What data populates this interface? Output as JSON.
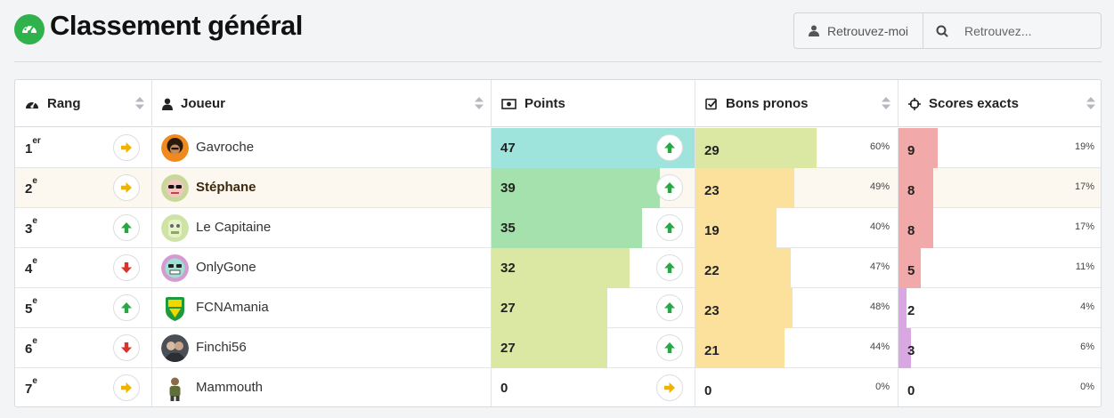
{
  "page": {
    "title": "Classement général",
    "find_me_label": "Retrouvez-moi",
    "search_placeholder": "Retrouvez..."
  },
  "colors": {
    "brand_green": "#2fb14c",
    "arrow_up": "#28a745",
    "arrow_down": "#d9332b",
    "arrow_same": "#f0b400"
  },
  "columns": {
    "rank": "Rang",
    "player": "Joueur",
    "points": "Points",
    "good": "Bons pronos",
    "exact": "Scores exacts"
  },
  "rows": [
    {
      "rank": "1",
      "suffix": "er",
      "trend": "same",
      "player": "Gavroche",
      "avatar": "afro-icon",
      "points": "47",
      "points_trend": "up",
      "points_fill": 1.0,
      "points_color": "#9ee3dc",
      "good": "29",
      "good_pct": "60%",
      "good_fill": 0.6,
      "good_color": "#dbe8a4",
      "exact": "9",
      "exact_pct": "19%",
      "exact_fill": 0.19,
      "exact_color": "#f2a9a9"
    },
    {
      "rank": "2",
      "suffix": "e",
      "trend": "same",
      "player": "Stéphane",
      "avatar": "sunglasses-face-icon",
      "points": "39",
      "points_trend": "up",
      "points_fill": 0.83,
      "points_color": "#a5e1ad",
      "good": "23",
      "good_pct": "49%",
      "good_fill": 0.49,
      "good_color": "#fbe19b",
      "exact": "8",
      "exact_pct": "17%",
      "exact_fill": 0.17,
      "exact_color": "#f2a9a9",
      "highlight": true
    },
    {
      "rank": "3",
      "suffix": "e",
      "trend": "up",
      "player": "Le Capitaine",
      "avatar": "captain-face-icon",
      "points": "35",
      "points_trend": "up",
      "points_fill": 0.74,
      "points_color": "#a5e1ad",
      "good": "19",
      "good_pct": "40%",
      "good_fill": 0.4,
      "good_color": "#fbe19b",
      "exact": "8",
      "exact_pct": "17%",
      "exact_fill": 0.17,
      "exact_color": "#f2a9a9"
    },
    {
      "rank": "4",
      "suffix": "e",
      "trend": "down",
      "player": "OnlyGone",
      "avatar": "skull-face-icon",
      "points": "32",
      "points_trend": "up",
      "points_fill": 0.68,
      "points_color": "#dbe8a4",
      "good": "22",
      "good_pct": "47%",
      "good_fill": 0.47,
      "good_color": "#fbe19b",
      "exact": "5",
      "exact_pct": "11%",
      "exact_fill": 0.11,
      "exact_color": "#f2a9a9"
    },
    {
      "rank": "5",
      "suffix": "e",
      "trend": "up",
      "player": "FCNAmania",
      "avatar": "fcn-crest-icon",
      "points": "27",
      "points_trend": "up",
      "points_fill": 0.57,
      "points_color": "#dbe8a4",
      "good": "23",
      "good_pct": "48%",
      "good_fill": 0.48,
      "good_color": "#fbe19b",
      "exact": "2",
      "exact_pct": "4%",
      "exact_fill": 0.04,
      "exact_color": "#d9a8e3"
    },
    {
      "rank": "6",
      "suffix": "e",
      "trend": "down",
      "player": "Finchi56",
      "avatar": "couple-photo-icon",
      "points": "27",
      "points_trend": "up",
      "points_fill": 0.57,
      "points_color": "#dbe8a4",
      "good": "21",
      "good_pct": "44%",
      "good_fill": 0.44,
      "good_color": "#fbe19b",
      "exact": "3",
      "exact_pct": "6%",
      "exact_fill": 0.06,
      "exact_color": "#d9a8e3"
    },
    {
      "rank": "7",
      "suffix": "e",
      "trend": "same",
      "player": "Mammouth",
      "avatar": "man-figure-icon",
      "points": "0",
      "points_trend": "same",
      "points_fill": 0,
      "points_color": "#ffffff",
      "good": "0",
      "good_pct": "0%",
      "good_fill": 0,
      "good_color": "#ffffff",
      "exact": "0",
      "exact_pct": "0%",
      "exact_fill": 0,
      "exact_color": "#ffffff"
    }
  ]
}
